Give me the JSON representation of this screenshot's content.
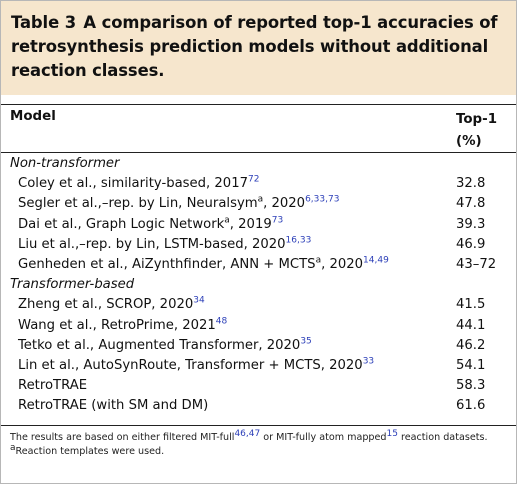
{
  "table": {
    "label": "Table 3",
    "title": "A comparison of reported top-1 accuracies of retrosynthesis prediction models without additional reaction classes.",
    "columns": [
      "Model",
      "Top-1(%)"
    ],
    "groups": [
      {
        "name": "Non-transformer",
        "rows": [
          {
            "model": "Coley et al., similarity-based, 2017",
            "marker": "",
            "refs": "72",
            "value": "32.8"
          },
          {
            "model": "Segler et al.,–rep. by Lin, Neuralsym",
            "marker": "a",
            "suffix": ", 2020",
            "refs": "6,33,73",
            "value": "47.8"
          },
          {
            "model": "Dai et al., Graph Logic Network",
            "marker": "a",
            "suffix": ", 2019",
            "refs": "73",
            "value": "39.3"
          },
          {
            "model": "Liu et al.,–rep. by Lin, LSTM-based, 2020",
            "marker": "",
            "refs": "16,33",
            "value": "46.9"
          },
          {
            "model": "Genheden et al., AiZynthfinder, ANN + MCTS",
            "marker": "a",
            "suffix": ", 2020",
            "refs": "14,49",
            "value": "43–72"
          }
        ]
      },
      {
        "name": "Transformer-based",
        "rows": [
          {
            "model": "Zheng et al., SCROP, 2020",
            "marker": "",
            "refs": "34",
            "value": "41.5"
          },
          {
            "model": "Wang et al., RetroPrime, 2021",
            "marker": "",
            "refs": "48",
            "value": "44.1"
          },
          {
            "model": "Tetko et al., Augmented Transformer, 2020",
            "marker": "",
            "refs": "35",
            "value": "46.2"
          },
          {
            "model": "Lin et al., AutoSynRoute, Transformer + MCTS, 2020",
            "marker": "",
            "refs": "33",
            "value": "54.1"
          },
          {
            "model": "RetroTRAE",
            "marker": "",
            "refs": "",
            "value": "58.3"
          },
          {
            "model": "RetroTRAE (with SM and DM)",
            "marker": "",
            "refs": "",
            "value": "61.6"
          }
        ]
      }
    ],
    "footnote_main_pre": "The results are based on either filtered MIT-full",
    "footnote_main_ref1": "46,47",
    "footnote_main_mid": " or MIT-fully atom mapped",
    "footnote_main_ref2": "15",
    "footnote_main_post": " reaction datasets.",
    "footnote_a_marker": "a",
    "footnote_a_text": "Reaction templates were used."
  },
  "colors": {
    "title_band": "#f6e6cd",
    "reference_link": "#2c3fb8"
  }
}
